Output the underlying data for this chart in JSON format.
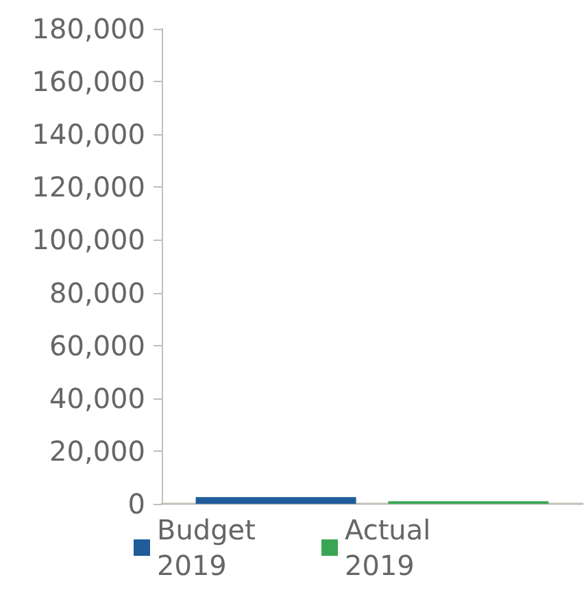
{
  "chart_data": {
    "type": "bar",
    "categories": [
      null
    ],
    "series": [
      {
        "name": "Budget 2019",
        "color": "#1f5c99",
        "values": [
          2500
        ]
      },
      {
        "name": "Actual 2019",
        "color": "#3aa655",
        "values": [
          1000
        ]
      }
    ],
    "ylim": [
      0,
      180000
    ],
    "yticks": [
      0,
      {
        "value": 20000,
        "label": "20,000"
      },
      {
        "value": 40000,
        "label": "40,000"
      },
      {
        "value": 60000,
        "label": "60,000"
      },
      {
        "value": 80000,
        "label": "80,000"
      },
      {
        "value": 100000,
        "label": "100,000"
      },
      {
        "value": 120000,
        "label": "120,000"
      },
      {
        "value": 140000,
        "label": "140,000"
      },
      {
        "value": 160000,
        "label": "160,000"
      },
      {
        "value": 180000,
        "label": "180,000"
      }
    ],
    "grid": false,
    "legend": "bottom"
  }
}
